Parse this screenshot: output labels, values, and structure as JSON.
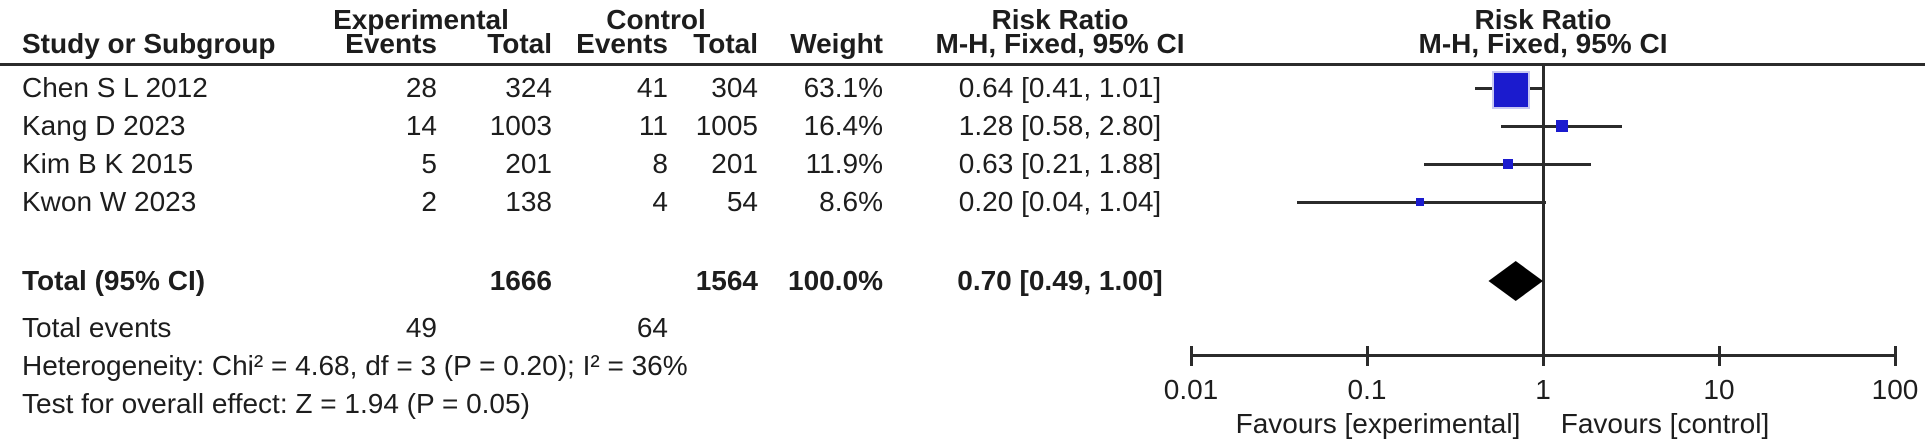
{
  "header": {
    "group": {
      "experimental": "Experimental",
      "control": "Control",
      "risk_ratio_left": "Risk Ratio",
      "risk_ratio_right": "Risk Ratio"
    },
    "cols": {
      "study": "Study or Subgroup",
      "events_exp": "Events",
      "total_exp": "Total",
      "events_ctl": "Events",
      "total_ctl": "Total",
      "weight": "Weight",
      "mh_left": "M-H, Fixed, 95% CI",
      "mh_right": "M-H, Fixed, 95% CI"
    }
  },
  "studies": [
    {
      "name": "Chen S L 2012",
      "events_exp": "28",
      "total_exp": "324",
      "events_ctl": "41",
      "total_ctl": "304",
      "weight": "63.1%",
      "rr_text": "0.64 [0.41, 1.01]"
    },
    {
      "name": "Kang D 2023",
      "events_exp": "14",
      "total_exp": "1003",
      "events_ctl": "11",
      "total_ctl": "1005",
      "weight": "16.4%",
      "rr_text": "1.28 [0.58, 2.80]"
    },
    {
      "name": "Kim B K 2015",
      "events_exp": "5",
      "total_exp": "201",
      "events_ctl": "8",
      "total_ctl": "201",
      "weight": "11.9%",
      "rr_text": "0.63 [0.21, 1.88]"
    },
    {
      "name": "Kwon W 2023",
      "events_exp": "2",
      "total_exp": "138",
      "events_ctl": "4",
      "total_ctl": "54",
      "weight": "8.6%",
      "rr_text": "0.20 [0.04, 1.04]"
    }
  ],
  "total_row": {
    "label": "Total (95% CI)",
    "total_exp": "1666",
    "total_ctl": "1564",
    "weight": "100.0%",
    "rr_text": "0.70 [0.49, 1.00]"
  },
  "total_events": {
    "label": "Total events",
    "exp": "49",
    "ctl": "64"
  },
  "footnotes": {
    "heterogeneity": "Heterogeneity: Chi² = 4.68, df = 3 (P = 0.20); I² = 36%",
    "overall_effect": "Test for overall effect: Z = 1.94 (P = 0.05)"
  },
  "axis": {
    "tick_labels": [
      "0.01",
      "0.1",
      "1",
      "10",
      "100"
    ],
    "favours_left": "Favours [experimental]",
    "favours_right": "Favours [control]"
  },
  "colors": {
    "square": "#1b1bce",
    "square_border": "#c9c9f2",
    "diamond": "#000000",
    "line": "#2b2b2b",
    "text": "#1d1d1d"
  },
  "chart_data": {
    "type": "scatter",
    "subtype": "forest-plot",
    "effect_measure": "Risk Ratio",
    "method": "M-H, Fixed, 95% CI",
    "x_scale": "log10",
    "xlim": [
      0.01,
      100
    ],
    "x_ticks": [
      0.01,
      0.1,
      1,
      10,
      100
    ],
    "studies": [
      {
        "name": "Chen S L 2012",
        "events_exp": 28,
        "n_exp": 324,
        "events_ctl": 41,
        "n_ctl": 304,
        "rr": 0.64,
        "ci_low": 0.41,
        "ci_high": 1.01,
        "weight_pct": 63.1
      },
      {
        "name": "Kang D 2023",
        "events_exp": 14,
        "n_exp": 1003,
        "events_ctl": 11,
        "n_ctl": 1005,
        "rr": 1.28,
        "ci_low": 0.58,
        "ci_high": 2.8,
        "weight_pct": 16.4
      },
      {
        "name": "Kim B K 2015",
        "events_exp": 5,
        "n_exp": 201,
        "events_ctl": 8,
        "n_ctl": 201,
        "rr": 0.63,
        "ci_low": 0.21,
        "ci_high": 1.88,
        "weight_pct": 11.9
      },
      {
        "name": "Kwon W 2023",
        "events_exp": 2,
        "n_exp": 138,
        "events_ctl": 4,
        "n_ctl": 54,
        "rr": 0.2,
        "ci_low": 0.04,
        "ci_high": 1.04,
        "weight_pct": 8.6
      }
    ],
    "total": {
      "rr": 0.7,
      "ci_low": 0.49,
      "ci_high": 1.0,
      "weight_pct": 100.0,
      "n_exp": 1666,
      "n_ctl": 1564,
      "events_exp": 49,
      "events_ctl": 64
    },
    "heterogeneity": {
      "chi2": 4.68,
      "df": 3,
      "p": 0.2,
      "i2_pct": 36
    },
    "overall_effect": {
      "z": 1.94,
      "p": 0.05
    },
    "favours_left": "Favours [experimental]",
    "favours_right": "Favours [control]"
  }
}
